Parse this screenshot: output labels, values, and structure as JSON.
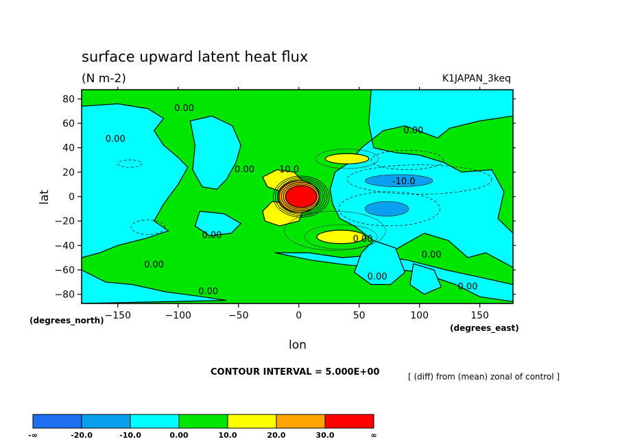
{
  "chart_data": {
    "type": "heatmap",
    "title": "surface upward latent heat flux",
    "subtitle": "(N m-2)",
    "experiment": "K1JAPAN_3keq",
    "xlabel": "lon",
    "ylabel": "lat",
    "x_units": "(degrees_east)",
    "y_units": "(degrees_north)",
    "xlim": [
      -180,
      177.5
    ],
    "ylim": [
      -87.5,
      87.5
    ],
    "x_ticks": [
      -150,
      -100,
      -50,
      0,
      50,
      100,
      150
    ],
    "y_ticks": [
      80,
      60,
      40,
      20,
      0,
      -20,
      -40,
      -60,
      -80
    ],
    "x_tick_labels": [
      "−150",
      "−100",
      "−50",
      "0",
      "50",
      "100",
      "150"
    ],
    "y_tick_labels": [
      "80",
      "60",
      "40",
      "20",
      "0",
      "−20",
      "−40",
      "−60",
      "−80"
    ],
    "contour_interval_text": "CONTOUR INTERVAL = 5.000E+00",
    "diff_text": "[ (diff) from (mean) zonal of control ]",
    "levels": [
      -20,
      -10,
      0,
      10,
      20,
      30
    ],
    "colorbar": {
      "bins": [
        {
          "from": "-∞",
          "to": -20,
          "color": "#1e6ff0"
        },
        {
          "from": -20,
          "to": -10,
          "color": "#0aa0f0"
        },
        {
          "from": -10,
          "to": 0,
          "color": "#00ffff"
        },
        {
          "from": 0,
          "to": 10,
          "color": "#00e600"
        },
        {
          "from": 10,
          "to": 20,
          "color": "#ffff00"
        },
        {
          "from": 20,
          "to": 30,
          "color": "#ffa500"
        },
        {
          "from": 30,
          "to": "∞",
          "color": "#ff0000"
        }
      ],
      "labels": [
        "-∞",
        "-20.0",
        "-10.0",
        "0.00",
        "10.0",
        "20.0",
        "30.0",
        "∞"
      ]
    },
    "contour_labels": [
      {
        "text": "0.00",
        "lon": -95,
        "lat": 70
      },
      {
        "text": "0.00",
        "lon": -152,
        "lat": 45
      },
      {
        "text": "0.00",
        "lon": 95,
        "lat": 52
      },
      {
        "text": "0.00",
        "lon": -45,
        "lat": 20
      },
      {
        "text": "10.0",
        "lon": -8,
        "lat": 20
      },
      {
        "text": "-10.0",
        "lon": 87,
        "lat": 10
      },
      {
        "text": "0.00",
        "lon": -72,
        "lat": -34
      },
      {
        "text": "0.00",
        "lon": 53,
        "lat": -37
      },
      {
        "text": "0.00",
        "lon": 110,
        "lat": -50
      },
      {
        "text": "0.00",
        "lon": -120,
        "lat": -58
      },
      {
        "text": "0.00",
        "lon": 65,
        "lat": -68
      },
      {
        "text": "0.00",
        "lon": -75,
        "lat": -80
      },
      {
        "text": "0.00",
        "lon": 140,
        "lat": -76
      }
    ],
    "features": [
      {
        "name": "central-maximum",
        "lon": 2,
        "lat": 0,
        "value": ">30"
      },
      {
        "name": "ring-20-30",
        "lon": 0,
        "lat": 0,
        "value": "20-30"
      },
      {
        "name": "north-yellow-lobe",
        "lon": -20,
        "lat": 12,
        "value": "10-20"
      },
      {
        "name": "south-yellow-lobe",
        "lon": -15,
        "lat": -15,
        "value": "10-20"
      },
      {
        "name": "north-east-yellow-patch",
        "lon": 40,
        "lat": 31,
        "value": "10-20"
      },
      {
        "name": "south-east-yellow-patch",
        "lon": 35,
        "lat": -33,
        "value": "10-20"
      },
      {
        "name": "north-blue-patch",
        "lon": 83,
        "lat": 13,
        "value": "-20 to -10"
      },
      {
        "name": "south-blue-patch",
        "lon": 73,
        "lat": -10,
        "value": "-20 to -10"
      }
    ]
  }
}
